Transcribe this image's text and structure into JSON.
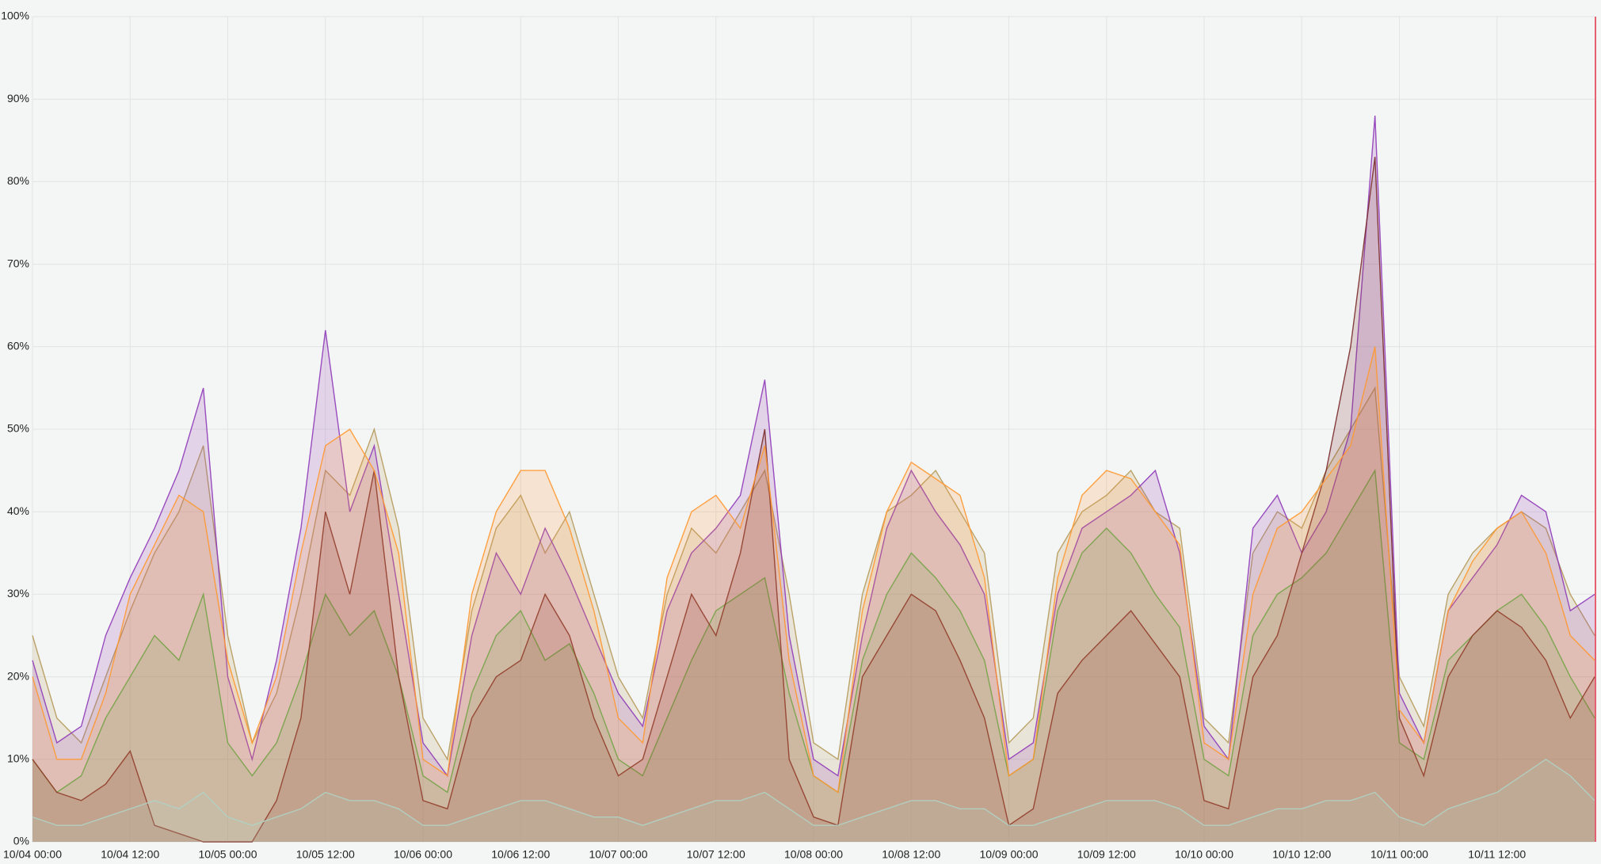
{
  "chart_data": {
    "type": "area",
    "x": [
      0,
      3,
      6,
      9,
      12,
      15,
      18,
      21,
      24,
      27,
      30,
      33,
      36,
      39,
      42,
      45,
      48,
      51,
      54,
      57,
      60,
      63,
      66,
      69,
      72,
      75,
      78,
      81,
      84,
      87,
      90,
      93,
      96,
      99,
      102,
      105,
      108,
      111,
      114,
      117,
      120,
      123,
      126,
      129,
      132,
      135,
      138,
      141,
      144,
      147,
      150,
      153,
      156,
      159,
      162,
      165,
      168,
      171,
      174,
      177,
      180,
      183,
      186,
      189,
      192
    ],
    "xlim": [
      0,
      192
    ],
    "xticks": [
      {
        "value": 0,
        "label": "10/04 00:00"
      },
      {
        "value": 12,
        "label": "10/04 12:00"
      },
      {
        "value": 24,
        "label": "10/05 00:00"
      },
      {
        "value": 36,
        "label": "10/05 12:00"
      },
      {
        "value": 48,
        "label": "10/06 00:00"
      },
      {
        "value": 60,
        "label": "10/06 12:00"
      },
      {
        "value": 72,
        "label": "10/07 00:00"
      },
      {
        "value": 84,
        "label": "10/07 12:00"
      },
      {
        "value": 96,
        "label": "10/08 00:00"
      },
      {
        "value": 108,
        "label": "10/08 12:00"
      },
      {
        "value": 120,
        "label": "10/09 00:00"
      },
      {
        "value": 132,
        "label": "10/09 12:00"
      },
      {
        "value": 144,
        "label": "10/10 00:00"
      },
      {
        "value": 156,
        "label": "10/10 12:00"
      },
      {
        "value": 168,
        "label": "10/11 00:00"
      },
      {
        "value": 180,
        "label": "10/11 12:00"
      }
    ],
    "ylim": [
      0,
      100
    ],
    "yticks": [
      {
        "value": 0,
        "label": "0%"
      },
      {
        "value": 10,
        "label": "10%"
      },
      {
        "value": 20,
        "label": "20%"
      },
      {
        "value": 30,
        "label": "30%"
      },
      {
        "value": 40,
        "label": "40%"
      },
      {
        "value": 50,
        "label": "50%"
      },
      {
        "value": 60,
        "label": "60%"
      },
      {
        "value": 70,
        "label": "70%"
      },
      {
        "value": 80,
        "label": "80%"
      },
      {
        "value": 90,
        "label": "90%"
      },
      {
        "value": 100,
        "label": "100%"
      }
    ],
    "grid": true,
    "series": [
      {
        "color": "#b59a5a",
        "values": [
          25,
          15,
          12,
          20,
          28,
          35,
          40,
          48,
          25,
          12,
          18,
          30,
          45,
          42,
          50,
          38,
          15,
          10,
          28,
          38,
          42,
          35,
          40,
          30,
          20,
          15,
          30,
          38,
          35,
          40,
          45,
          30,
          12,
          10,
          30,
          40,
          42,
          45,
          40,
          35,
          12,
          15,
          35,
          40,
          42,
          45,
          40,
          38,
          15,
          12,
          35,
          40,
          38,
          45,
          50,
          55,
          20,
          14,
          30,
          35,
          38,
          40,
          38,
          30,
          25
        ]
      },
      {
        "color": "#8f3bb8",
        "values": [
          22,
          12,
          14,
          25,
          32,
          38,
          45,
          55,
          20,
          10,
          22,
          38,
          62,
          40,
          48,
          30,
          12,
          8,
          25,
          35,
          30,
          38,
          32,
          25,
          18,
          14,
          28,
          35,
          38,
          42,
          56,
          25,
          10,
          8,
          25,
          38,
          45,
          40,
          36,
          30,
          10,
          12,
          30,
          38,
          40,
          42,
          45,
          35,
          14,
          10,
          38,
          42,
          35,
          40,
          50,
          88,
          18,
          12,
          28,
          32,
          36,
          42,
          40,
          28,
          30
        ]
      },
      {
        "color": "#56a64b",
        "values": [
          10,
          6,
          8,
          15,
          20,
          25,
          22,
          30,
          12,
          8,
          12,
          20,
          30,
          25,
          28,
          20,
          8,
          6,
          18,
          25,
          28,
          22,
          24,
          18,
          10,
          8,
          15,
          22,
          28,
          30,
          32,
          18,
          8,
          6,
          22,
          30,
          35,
          32,
          28,
          22,
          8,
          10,
          28,
          35,
          38,
          35,
          30,
          26,
          10,
          8,
          25,
          30,
          32,
          35,
          40,
          45,
          12,
          10,
          22,
          25,
          28,
          30,
          26,
          20,
          15
        ]
      },
      {
        "color": "#7a2a2a",
        "values": [
          10,
          6,
          5,
          7,
          11,
          2,
          1,
          0,
          0,
          0,
          5,
          15,
          40,
          30,
          45,
          20,
          5,
          4,
          15,
          20,
          22,
          30,
          25,
          15,
          8,
          10,
          20,
          30,
          25,
          35,
          50,
          10,
          3,
          2,
          20,
          25,
          30,
          28,
          22,
          15,
          2,
          4,
          18,
          22,
          25,
          28,
          24,
          20,
          5,
          4,
          20,
          25,
          35,
          45,
          60,
          83,
          15,
          8,
          20,
          25,
          28,
          26,
          22,
          15,
          20
        ]
      },
      {
        "color": "#9fe0e6",
        "values": [
          3,
          2,
          2,
          3,
          4,
          5,
          4,
          6,
          3,
          2,
          3,
          4,
          6,
          5,
          5,
          4,
          2,
          2,
          3,
          4,
          5,
          5,
          4,
          3,
          3,
          2,
          3,
          4,
          5,
          5,
          6,
          4,
          2,
          2,
          3,
          4,
          5,
          5,
          4,
          4,
          2,
          2,
          3,
          4,
          5,
          5,
          5,
          4,
          2,
          2,
          3,
          4,
          4,
          5,
          5,
          6,
          3,
          2,
          4,
          5,
          6,
          8,
          10,
          8,
          5
        ]
      },
      {
        "color": "#ff9830",
        "values": [
          20,
          10,
          10,
          18,
          30,
          36,
          42,
          40,
          22,
          12,
          20,
          35,
          48,
          50,
          45,
          35,
          10,
          8,
          30,
          40,
          45,
          45,
          38,
          28,
          15,
          12,
          32,
          40,
          42,
          38,
          48,
          22,
          8,
          6,
          28,
          40,
          46,
          44,
          42,
          32,
          8,
          10,
          32,
          42,
          45,
          44,
          40,
          36,
          12,
          10,
          30,
          38,
          40,
          44,
          48,
          60,
          16,
          12,
          28,
          34,
          38,
          40,
          35,
          25,
          22
        ]
      }
    ]
  }
}
